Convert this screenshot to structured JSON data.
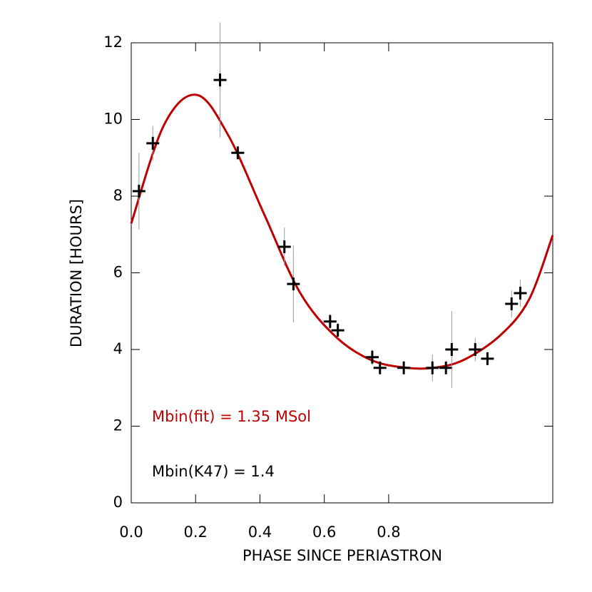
{
  "chart_data": {
    "type": "scatter",
    "x_label": "PHASE SINCE PERIASTRON",
    "y_label": "DURATION [HOURS]",
    "xlim": [
      0,
      1.31
    ],
    "ylim": [
      0,
      12
    ],
    "xticks": [
      {
        "value": 0,
        "label": "0.0"
      },
      0.2,
      0.4,
      0.6,
      0.8
    ],
    "yticks": [
      0,
      2,
      4,
      6,
      8,
      10,
      12
    ],
    "series": [
      {
        "name": "Mbin(fit) = 1.35 MSol",
        "color": "#c00000",
        "kind": "line",
        "x": [
          0,
          0.102,
          0.204,
          0.302,
          0.413,
          0.524,
          0.636,
          0.747,
          0.858,
          0.947,
          1.036,
          1.147,
          1.236,
          1.31
        ],
        "values": [
          7.29,
          9.86,
          10.64,
          9.58,
          7.53,
          5.49,
          4.33,
          3.72,
          3.52,
          3.53,
          3.74,
          4.37,
          5.3,
          6.98
        ]
      },
      {
        "color": "#000000",
        "kind": "points",
        "x": [
          0.024,
          0.067,
          0.276,
          0.331,
          0.476,
          0.504,
          0.618,
          0.642,
          0.749,
          0.773,
          0.847,
          0.936,
          0.978,
          0.996,
          1.069,
          1.107,
          1.182,
          1.209
        ],
        "values": [
          8.13,
          9.38,
          11.03,
          9.13,
          6.68,
          5.71,
          4.73,
          4.5,
          3.8,
          3.52,
          3.52,
          3.52,
          3.52,
          4.0,
          4.0,
          3.76,
          5.19,
          5.47
        ],
        "errors": [
          1.0,
          0.45,
          1.5,
          0.1,
          0.5,
          1.0,
          0.2,
          0.2,
          0.2,
          0.1,
          0.1,
          0.35,
          0.1,
          1.0,
          0.3,
          0.1,
          0.35,
          0.35
        ]
      }
    ],
    "annotations": [
      {
        "text": "Mbin(fit) = 1.35 MSol",
        "color": "#c00000"
      },
      {
        "text": "Mbin(K47) = 1.4",
        "color": "#000000"
      }
    ]
  }
}
